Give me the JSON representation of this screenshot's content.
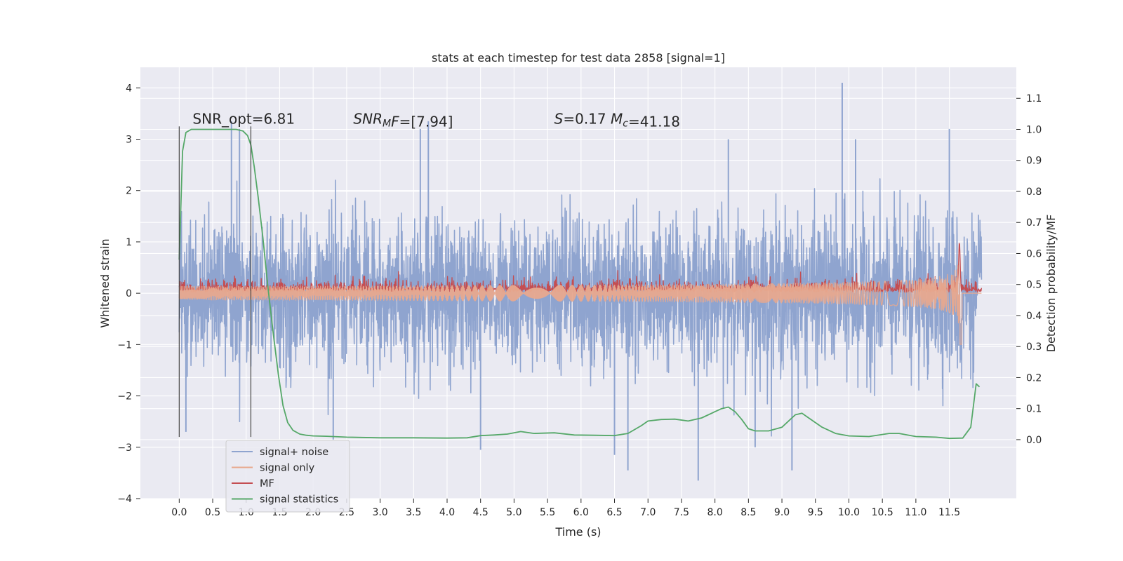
{
  "chart_data": {
    "type": "line",
    "title": "stats at each timestep for test data 2858 [signal=1]",
    "xlabel": "Time (s)",
    "ylabel": "Whitened strain",
    "y2label": "Detection probability/MF",
    "xlim": [
      -0.58,
      12.5
    ],
    "ylim": [
      -4.0,
      4.4
    ],
    "y2lim": [
      -0.19,
      1.2
    ],
    "xticks": [
      0.0,
      0.5,
      1.0,
      1.5,
      2.0,
      2.5,
      3.0,
      3.5,
      4.0,
      4.5,
      5.0,
      5.5,
      6.0,
      6.5,
      7.0,
      7.5,
      8.0,
      8.5,
      9.0,
      9.5,
      10.0,
      10.5,
      11.0,
      11.5
    ],
    "xtick_labels": [
      "0.0",
      "0.5",
      "1.0",
      "1.5",
      "2.0",
      "2.5",
      "3.0",
      "3.5",
      "4.0",
      "4.5",
      "5.0",
      "5.5",
      "6.0",
      "6.5",
      "7.0",
      "7.5",
      "8.0",
      "8.5",
      "9.0",
      "9.5",
      "10.0",
      "10.5",
      "11.0",
      "11.5"
    ],
    "yticks": [
      -4,
      -3,
      -2,
      -1,
      0,
      1,
      2,
      3,
      4
    ],
    "ytick_labels": [
      "−4",
      "−3",
      "−2",
      "−1",
      "0",
      "1",
      "2",
      "3",
      "4"
    ],
    "y2ticks": [
      0.0,
      0.1,
      0.2,
      0.3,
      0.4,
      0.5,
      0.6,
      0.7,
      0.8,
      0.9,
      1.0,
      1.1
    ],
    "y2tick_labels": [
      "0.0",
      "0.1",
      "0.2",
      "0.3",
      "0.4",
      "0.5",
      "0.6",
      "0.7",
      "0.8",
      "0.9",
      "1.0",
      "1.1"
    ],
    "grid": true,
    "legend_location": "lower left",
    "annotations": [
      {
        "text": "SNR_opt=6.81",
        "x": 0.2,
        "y": 3.3
      },
      {
        "text_parts": [
          {
            "t": "SNR",
            "italic": true
          },
          {
            "t": "M",
            "italic": true,
            "sub": true
          },
          {
            "t": "F",
            "italic": true
          },
          {
            "t": "=[7.94]",
            "italic": false
          }
        ],
        "x": 2.6,
        "y": 3.3
      },
      {
        "text_parts": [
          {
            "t": "S",
            "italic": true
          },
          {
            "t": "=0.17   ",
            "italic": false
          },
          {
            "t": "M",
            "italic": true
          },
          {
            "t": "c",
            "italic": true,
            "sub": true
          },
          {
            "t": "=41.18",
            "italic": false
          }
        ],
        "x": 5.6,
        "y": 3.3
      }
    ],
    "vlines": [
      {
        "x": 0.0,
        "y_range": [
          -2.8,
          3.25
        ]
      },
      {
        "x": 1.07,
        "y_range": [
          -2.8,
          3.25
        ]
      }
    ],
    "series": [
      {
        "name": "signal+ noise",
        "color": "#8fa4cf",
        "axis": "left",
        "style": "noise_band",
        "x_range": [
          0.0,
          11.98
        ],
        "band_core": [
          -1.55,
          1.45
        ],
        "typical_peak_high": 2.2,
        "typical_peak_low": -2.2,
        "spikes": [
          {
            "x": 0.78,
            "y": 3.35
          },
          {
            "x": 0.9,
            "y": 3.2
          },
          {
            "x": 3.6,
            "y": 3.2
          },
          {
            "x": 3.72,
            "y": 3.35
          },
          {
            "x": 9.9,
            "y": 4.1
          },
          {
            "x": 8.2,
            "y": 3.0
          },
          {
            "x": 11.5,
            "y": 3.2
          },
          {
            "x": 10.1,
            "y": 3.0
          },
          {
            "x": 4.5,
            "y": -3.05
          },
          {
            "x": 6.7,
            "y": -3.45
          },
          {
            "x": 7.75,
            "y": -3.65
          },
          {
            "x": 9.15,
            "y": -3.45
          },
          {
            "x": 6.5,
            "y": -3.15
          },
          {
            "x": 8.6,
            "y": -3.0
          },
          {
            "x": 2.3,
            "y": -2.85
          },
          {
            "x": 0.1,
            "y": -2.7
          }
        ]
      },
      {
        "name": "signal only",
        "color": "#e8a98e",
        "axis": "left",
        "style": "chirp",
        "x_range": [
          0.0,
          11.98
        ],
        "merger_time": 11.66,
        "peak_amplitude": 1.45
      },
      {
        "name": "MF",
        "color": "#c44e52",
        "axis": "left",
        "style": "mf_band",
        "x_range": [
          0.0,
          11.98
        ],
        "baseline": 0.0,
        "typical_peak": 0.35,
        "peak": {
          "x": 11.65,
          "y": 1.0
        }
      },
      {
        "name": "signal statistics",
        "color": "#55a868",
        "axis": "right",
        "style": "line",
        "x": [
          0.0,
          0.05,
          0.1,
          0.18,
          0.3,
          0.5,
          0.7,
          0.85,
          0.95,
          1.02,
          1.07,
          1.12,
          1.18,
          1.25,
          1.32,
          1.4,
          1.48,
          1.55,
          1.62,
          1.7,
          1.8,
          1.9,
          2.0,
          2.2,
          2.5,
          3.0,
          3.5,
          4.0,
          4.3,
          4.5,
          4.7,
          4.9,
          5.1,
          5.3,
          5.6,
          5.9,
          6.2,
          6.5,
          6.7,
          6.9,
          7.0,
          7.2,
          7.4,
          7.6,
          7.8,
          8.0,
          8.1,
          8.2,
          8.3,
          8.4,
          8.5,
          8.6,
          8.8,
          9.0,
          9.2,
          9.3,
          9.4,
          9.6,
          9.8,
          10.0,
          10.3,
          10.6,
          10.75,
          11.0,
          11.3,
          11.5,
          11.7,
          11.82,
          11.9,
          11.95
        ],
        "y": [
          0.58,
          0.93,
          0.99,
          1.0,
          1.0,
          1.0,
          1.0,
          1.0,
          0.995,
          0.98,
          0.95,
          0.88,
          0.78,
          0.65,
          0.5,
          0.35,
          0.21,
          0.11,
          0.055,
          0.03,
          0.018,
          0.014,
          0.012,
          0.011,
          0.008,
          0.006,
          0.006,
          0.005,
          0.006,
          0.013,
          0.015,
          0.018,
          0.026,
          0.02,
          0.022,
          0.015,
          0.014,
          0.013,
          0.02,
          0.045,
          0.06,
          0.065,
          0.066,
          0.06,
          0.07,
          0.09,
          0.1,
          0.105,
          0.09,
          0.065,
          0.035,
          0.028,
          0.028,
          0.04,
          0.08,
          0.085,
          0.07,
          0.04,
          0.02,
          0.012,
          0.01,
          0.02,
          0.02,
          0.01,
          0.008,
          0.004,
          0.005,
          0.04,
          0.18,
          0.17
        ]
      }
    ]
  }
}
